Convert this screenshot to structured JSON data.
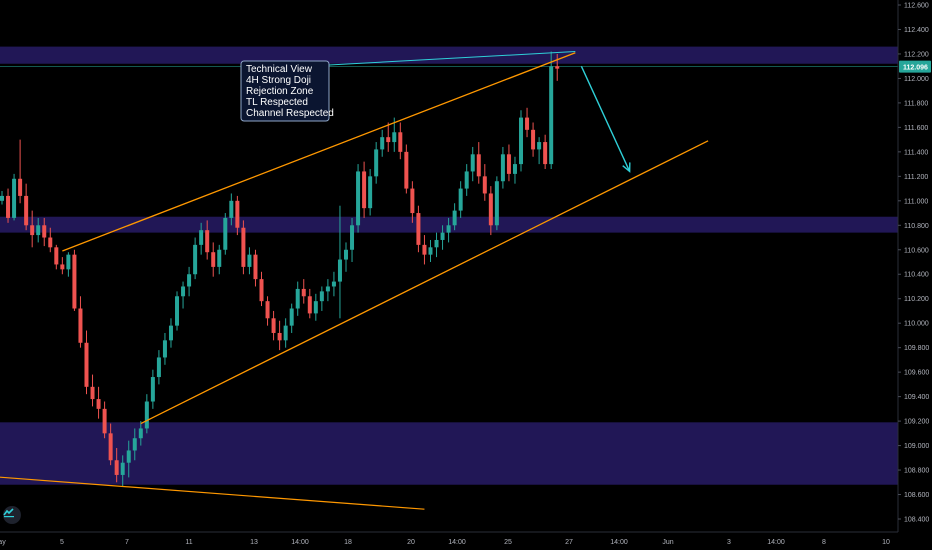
{
  "chart_data": {
    "type": "candlestick",
    "ylim": [
      108.32,
      112.72
    ],
    "y_ticks": [
      "112.600",
      "112.400",
      "112.200",
      "112.000",
      "111.800",
      "111.600",
      "111.400",
      "111.200",
      "111.000",
      "110.800",
      "110.600",
      "110.400",
      "110.200",
      "110.000",
      "109.800",
      "109.600",
      "109.400",
      "109.200",
      "109.000",
      "108.800",
      "108.600",
      "108.400"
    ],
    "x_ticks": [
      "ay",
      "5",
      "7",
      "11",
      "13",
      "14:00",
      "18",
      "20",
      "14:00",
      "25",
      "27",
      "14:00",
      "Jun",
      "3",
      "14:00",
      "8",
      "10"
    ],
    "current_price": "112.096",
    "current_price_value": 112.096,
    "colors": {
      "background": "#000000",
      "bullish": "#26a69a",
      "bearish": "#ef5350",
      "zone": "#2a1d6e",
      "trendline": "#ff9800",
      "arrow": "#2fd0d8",
      "price_line": "#26a69a"
    },
    "zones": [
      {
        "from": 112.12,
        "to": 112.26
      },
      {
        "from": 110.74,
        "to": 110.87
      },
      {
        "from": 108.68,
        "to": 109.19
      }
    ],
    "candles": [
      {
        "o": 111.0,
        "h": 111.08,
        "l": 110.97,
        "c": 111.04
      },
      {
        "o": 111.04,
        "h": 111.1,
        "l": 110.82,
        "c": 110.86
      },
      {
        "o": 110.86,
        "h": 111.22,
        "l": 110.84,
        "c": 111.18
      },
      {
        "o": 111.18,
        "h": 111.5,
        "l": 110.98,
        "c": 111.04
      },
      {
        "o": 111.04,
        "h": 111.14,
        "l": 110.76,
        "c": 110.8
      },
      {
        "o": 110.8,
        "h": 110.92,
        "l": 110.62,
        "c": 110.72
      },
      {
        "o": 110.72,
        "h": 110.86,
        "l": 110.66,
        "c": 110.8
      },
      {
        "o": 110.8,
        "h": 110.86,
        "l": 110.63,
        "c": 110.7
      },
      {
        "o": 110.7,
        "h": 110.78,
        "l": 110.58,
        "c": 110.62
      },
      {
        "o": 110.62,
        "h": 110.64,
        "l": 110.44,
        "c": 110.48
      },
      {
        "o": 110.48,
        "h": 110.54,
        "l": 110.4,
        "c": 110.44
      },
      {
        "o": 110.44,
        "h": 110.58,
        "l": 110.38,
        "c": 110.56
      },
      {
        "o": 110.56,
        "h": 110.6,
        "l": 110.1,
        "c": 110.12
      },
      {
        "o": 110.12,
        "h": 110.22,
        "l": 109.8,
        "c": 109.84
      },
      {
        "o": 109.84,
        "h": 109.94,
        "l": 109.42,
        "c": 109.48
      },
      {
        "o": 109.48,
        "h": 109.58,
        "l": 109.32,
        "c": 109.38
      },
      {
        "o": 109.38,
        "h": 109.48,
        "l": 109.22,
        "c": 109.3
      },
      {
        "o": 109.3,
        "h": 109.36,
        "l": 109.06,
        "c": 109.1
      },
      {
        "o": 109.1,
        "h": 109.18,
        "l": 108.84,
        "c": 108.88
      },
      {
        "o": 108.88,
        "h": 108.98,
        "l": 108.7,
        "c": 108.76
      },
      {
        "o": 108.76,
        "h": 108.92,
        "l": 108.67,
        "c": 108.86
      },
      {
        "o": 108.86,
        "h": 109.04,
        "l": 108.74,
        "c": 108.96
      },
      {
        "o": 108.96,
        "h": 109.14,
        "l": 108.88,
        "c": 109.06
      },
      {
        "o": 109.06,
        "h": 109.2,
        "l": 109.0,
        "c": 109.14
      },
      {
        "o": 109.14,
        "h": 109.42,
        "l": 109.1,
        "c": 109.36
      },
      {
        "o": 109.36,
        "h": 109.62,
        "l": 109.3,
        "c": 109.56
      },
      {
        "o": 109.56,
        "h": 109.78,
        "l": 109.5,
        "c": 109.72
      },
      {
        "o": 109.72,
        "h": 109.92,
        "l": 109.66,
        "c": 109.86
      },
      {
        "o": 109.86,
        "h": 110.04,
        "l": 109.8,
        "c": 109.98
      },
      {
        "o": 109.98,
        "h": 110.26,
        "l": 109.94,
        "c": 110.22
      },
      {
        "o": 110.22,
        "h": 110.34,
        "l": 110.12,
        "c": 110.3
      },
      {
        "o": 110.3,
        "h": 110.46,
        "l": 110.22,
        "c": 110.4
      },
      {
        "o": 110.4,
        "h": 110.7,
        "l": 110.36,
        "c": 110.64
      },
      {
        "o": 110.64,
        "h": 110.82,
        "l": 110.56,
        "c": 110.76
      },
      {
        "o": 110.76,
        "h": 110.84,
        "l": 110.52,
        "c": 110.58
      },
      {
        "o": 110.58,
        "h": 110.66,
        "l": 110.38,
        "c": 110.46
      },
      {
        "o": 110.46,
        "h": 110.64,
        "l": 110.4,
        "c": 110.6
      },
      {
        "o": 110.6,
        "h": 110.9,
        "l": 110.56,
        "c": 110.86
      },
      {
        "o": 110.86,
        "h": 111.06,
        "l": 110.8,
        "c": 111.0
      },
      {
        "o": 111.0,
        "h": 111.04,
        "l": 110.72,
        "c": 110.78
      },
      {
        "o": 110.78,
        "h": 110.84,
        "l": 110.4,
        "c": 110.46
      },
      {
        "o": 110.46,
        "h": 110.62,
        "l": 110.4,
        "c": 110.56
      },
      {
        "o": 110.56,
        "h": 110.6,
        "l": 110.3,
        "c": 110.36
      },
      {
        "o": 110.36,
        "h": 110.42,
        "l": 110.14,
        "c": 110.18
      },
      {
        "o": 110.18,
        "h": 110.22,
        "l": 109.98,
        "c": 110.04
      },
      {
        "o": 110.04,
        "h": 110.1,
        "l": 109.86,
        "c": 109.92
      },
      {
        "o": 109.92,
        "h": 110.02,
        "l": 109.78,
        "c": 109.86
      },
      {
        "o": 109.86,
        "h": 110.04,
        "l": 109.8,
        "c": 109.98
      },
      {
        "o": 109.98,
        "h": 110.16,
        "l": 109.92,
        "c": 110.12
      },
      {
        "o": 110.12,
        "h": 110.34,
        "l": 110.06,
        "c": 110.28
      },
      {
        "o": 110.28,
        "h": 110.36,
        "l": 110.16,
        "c": 110.22
      },
      {
        "o": 110.22,
        "h": 110.28,
        "l": 110.04,
        "c": 110.08
      },
      {
        "o": 110.08,
        "h": 110.24,
        "l": 110.02,
        "c": 110.18
      },
      {
        "o": 110.18,
        "h": 110.3,
        "l": 110.1,
        "c": 110.26
      },
      {
        "o": 110.26,
        "h": 110.36,
        "l": 110.18,
        "c": 110.3
      },
      {
        "o": 110.3,
        "h": 110.42,
        "l": 110.22,
        "c": 110.34
      },
      {
        "o": 110.34,
        "h": 110.96,
        "l": 110.04,
        "c": 110.52
      },
      {
        "o": 110.52,
        "h": 110.66,
        "l": 110.42,
        "c": 110.6
      },
      {
        "o": 110.6,
        "h": 110.86,
        "l": 110.5,
        "c": 110.8
      },
      {
        "o": 110.8,
        "h": 111.3,
        "l": 110.74,
        "c": 111.24
      },
      {
        "o": 111.24,
        "h": 111.32,
        "l": 110.86,
        "c": 110.94
      },
      {
        "o": 110.94,
        "h": 111.26,
        "l": 110.88,
        "c": 111.2
      },
      {
        "o": 111.2,
        "h": 111.48,
        "l": 111.14,
        "c": 111.42
      },
      {
        "o": 111.42,
        "h": 111.58,
        "l": 111.36,
        "c": 111.52
      },
      {
        "o": 111.52,
        "h": 111.64,
        "l": 111.4,
        "c": 111.48
      },
      {
        "o": 111.48,
        "h": 111.68,
        "l": 111.4,
        "c": 111.56
      },
      {
        "o": 111.56,
        "h": 111.64,
        "l": 111.34,
        "c": 111.4
      },
      {
        "o": 111.4,
        "h": 111.46,
        "l": 111.06,
        "c": 111.1
      },
      {
        "o": 111.1,
        "h": 111.16,
        "l": 110.82,
        "c": 110.9
      },
      {
        "o": 110.9,
        "h": 110.96,
        "l": 110.58,
        "c": 110.64
      },
      {
        "o": 110.64,
        "h": 110.72,
        "l": 110.48,
        "c": 110.56
      },
      {
        "o": 110.56,
        "h": 110.68,
        "l": 110.5,
        "c": 110.62
      },
      {
        "o": 110.62,
        "h": 110.74,
        "l": 110.54,
        "c": 110.68
      },
      {
        "o": 110.68,
        "h": 110.8,
        "l": 110.6,
        "c": 110.74
      },
      {
        "o": 110.74,
        "h": 110.86,
        "l": 110.66,
        "c": 110.8
      },
      {
        "o": 110.8,
        "h": 110.98,
        "l": 110.76,
        "c": 110.92
      },
      {
        "o": 110.92,
        "h": 111.16,
        "l": 110.86,
        "c": 111.1
      },
      {
        "o": 111.1,
        "h": 111.3,
        "l": 111.04,
        "c": 111.24
      },
      {
        "o": 111.24,
        "h": 111.44,
        "l": 111.16,
        "c": 111.38
      },
      {
        "o": 111.38,
        "h": 111.48,
        "l": 111.14,
        "c": 111.2
      },
      {
        "o": 111.2,
        "h": 111.3,
        "l": 111.0,
        "c": 111.06
      },
      {
        "o": 111.06,
        "h": 111.12,
        "l": 110.72,
        "c": 110.8
      },
      {
        "o": 110.8,
        "h": 111.2,
        "l": 110.76,
        "c": 111.16
      },
      {
        "o": 111.16,
        "h": 111.44,
        "l": 111.1,
        "c": 111.38
      },
      {
        "o": 111.38,
        "h": 111.46,
        "l": 111.16,
        "c": 111.22
      },
      {
        "o": 111.22,
        "h": 111.36,
        "l": 111.14,
        "c": 111.3
      },
      {
        "o": 111.3,
        "h": 111.74,
        "l": 111.24,
        "c": 111.68
      },
      {
        "o": 111.68,
        "h": 111.76,
        "l": 111.52,
        "c": 111.58
      },
      {
        "o": 111.58,
        "h": 111.64,
        "l": 111.36,
        "c": 111.42
      },
      {
        "o": 111.42,
        "h": 111.52,
        "l": 111.3,
        "c": 111.48
      },
      {
        "o": 111.48,
        "h": 111.54,
        "l": 111.26,
        "c": 111.3
      },
      {
        "o": 111.3,
        "h": 112.22,
        "l": 111.26,
        "c": 112.1
      },
      {
        "o": 112.1,
        "h": 112.2,
        "l": 111.98,
        "c": 112.08
      }
    ],
    "channel_lines": [
      {
        "from": {
          "i": 10,
          "y": 110.59
        },
        "to": {
          "i": 95,
          "y": 112.21
        }
      },
      {
        "from": {
          "i": 23,
          "y": 109.18
        },
        "to": {
          "i": 117,
          "y": 111.49
        }
      }
    ],
    "lower_line": {
      "from": {
        "i": -16,
        "y": 108.8
      },
      "to": {
        "i": 70,
        "y": 108.48
      }
    },
    "projection_arrow": {
      "from": {
        "i": 96,
        "y": 112.1
      },
      "to": {
        "i": 104,
        "y": 111.24
      }
    },
    "annotation": {
      "lines": [
        "Technical View",
        "4H Strong Doji",
        "Rejection Zone",
        "TL Respected",
        "Channel Respected"
      ]
    }
  }
}
